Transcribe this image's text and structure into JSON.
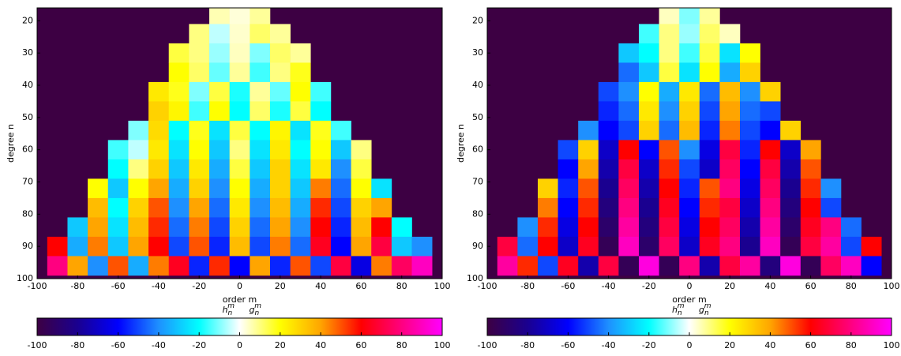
{
  "chart_data": [
    {
      "type": "heatmap",
      "xlabel": "order m",
      "ylabel": "degree n",
      "x": [
        -90,
        -80,
        -70,
        -60,
        -50,
        -40,
        -30,
        -20,
        -10,
        0,
        10,
        20,
        30,
        40,
        50,
        60,
        70,
        80,
        90
      ],
      "y": [
        18,
        24,
        30,
        36,
        42,
        48,
        54,
        60,
        66,
        72,
        78,
        84,
        90,
        96
      ],
      "z": [
        [
          null,
          null,
          null,
          null,
          null,
          null,
          null,
          null,
          6,
          3,
          8,
          null,
          null,
          null,
          null,
          null,
          null,
          null,
          null
        ],
        [
          null,
          null,
          null,
          null,
          null,
          null,
          null,
          10,
          -5,
          4,
          12,
          8,
          null,
          null,
          null,
          null,
          null,
          null,
          null
        ],
        [
          null,
          null,
          null,
          null,
          null,
          null,
          15,
          10,
          -8,
          5,
          -10,
          12,
          8,
          null,
          null,
          null,
          null,
          null,
          null
        ],
        [
          null,
          null,
          null,
          null,
          null,
          null,
          20,
          12,
          -12,
          8,
          -15,
          10,
          18,
          null,
          null,
          null,
          null,
          null,
          null
        ],
        [
          null,
          null,
          null,
          null,
          null,
          25,
          18,
          -10,
          15,
          -18,
          8,
          -12,
          20,
          -15,
          null,
          null,
          null,
          null,
          null
        ],
        [
          null,
          null,
          null,
          null,
          null,
          30,
          22,
          -15,
          20,
          -20,
          12,
          -18,
          15,
          -20,
          null,
          null,
          null,
          null,
          null
        ],
        [
          null,
          null,
          null,
          null,
          -10,
          28,
          -20,
          18,
          -25,
          15,
          -20,
          22,
          -25,
          18,
          -15,
          null,
          null,
          null,
          null
        ],
        [
          null,
          null,
          null,
          -15,
          -5,
          25,
          -25,
          20,
          -30,
          10,
          -25,
          25,
          -20,
          20,
          -30,
          10,
          null,
          null,
          null
        ],
        [
          null,
          null,
          null,
          -20,
          10,
          30,
          -30,
          25,
          -35,
          15,
          -30,
          30,
          -25,
          25,
          -40,
          15,
          null,
          null,
          null
        ],
        [
          null,
          null,
          20,
          -30,
          20,
          40,
          -35,
          30,
          -40,
          20,
          -35,
          30,
          -30,
          45,
          -45,
          20,
          -25,
          null,
          null
        ],
        [
          null,
          null,
          35,
          -20,
          30,
          50,
          -40,
          40,
          -45,
          25,
          -40,
          35,
          -35,
          55,
          -50,
          30,
          40,
          null,
          null
        ],
        [
          null,
          -30,
          40,
          -25,
          35,
          55,
          -45,
          45,
          -50,
          30,
          -45,
          40,
          -40,
          60,
          -55,
          35,
          60,
          -20,
          null
        ],
        [
          60,
          -35,
          45,
          -30,
          40,
          60,
          -50,
          50,
          -55,
          35,
          -50,
          45,
          -45,
          65,
          -60,
          40,
          70,
          -30,
          -40
        ],
        [
          80,
          40,
          -40,
          50,
          -35,
          45,
          65,
          -55,
          55,
          -60,
          40,
          -55,
          50,
          -50,
          70,
          -65,
          45,
          75,
          90
        ]
      ],
      "xlim": [
        -100,
        100
      ],
      "ylim": [
        16,
        100
      ],
      "xticks": [
        -100,
        -80,
        -60,
        -40,
        -20,
        0,
        20,
        40,
        60,
        80,
        100
      ],
      "yticks": [
        20,
        30,
        40,
        50,
        60,
        70,
        80,
        90,
        100
      ],
      "background": "#3d0043",
      "colorscale": [
        [
          -100,
          "#3d0043"
        ],
        [
          -80,
          "#1a0090"
        ],
        [
          -60,
          "#0000ff"
        ],
        [
          -40,
          "#1e90ff"
        ],
        [
          -20,
          "#00ffff"
        ],
        [
          0,
          "#ffffff"
        ],
        [
          20,
          "#ffff00"
        ],
        [
          40,
          "#ffa500"
        ],
        [
          60,
          "#ff0000"
        ],
        [
          80,
          "#ff0080"
        ],
        [
          100,
          "#ff00ff"
        ]
      ],
      "colorbar": {
        "lim": [
          -100,
          100
        ],
        "ticks": [
          -100,
          -80,
          -60,
          -40,
          -20,
          0,
          20,
          40,
          60,
          80,
          100
        ],
        "labels": [
          {
            "base": "h",
            "sub": "n",
            "sup": "m"
          },
          {
            "base": "g",
            "sub": "n",
            "sup": "m"
          }
        ]
      }
    },
    {
      "type": "heatmap",
      "xlabel": "order m",
      "ylabel": "degree n",
      "x": [
        -90,
        -80,
        -70,
        -60,
        -50,
        -40,
        -30,
        -20,
        -10,
        0,
        10,
        20,
        30,
        40,
        50,
        60,
        70,
        80,
        90
      ],
      "y": [
        18,
        24,
        30,
        36,
        42,
        48,
        54,
        60,
        66,
        72,
        78,
        84,
        90,
        96
      ],
      "z": [
        [
          null,
          null,
          null,
          null,
          null,
          null,
          null,
          null,
          5,
          -10,
          8,
          null,
          null,
          null,
          null,
          null,
          null,
          null,
          null
        ],
        [
          null,
          null,
          null,
          null,
          null,
          null,
          null,
          -15,
          10,
          -8,
          12,
          5,
          null,
          null,
          null,
          null,
          null,
          null,
          null
        ],
        [
          null,
          null,
          null,
          null,
          null,
          null,
          -30,
          -20,
          10,
          -15,
          15,
          -25,
          20,
          null,
          null,
          null,
          null,
          null,
          null
        ],
        [
          null,
          null,
          null,
          null,
          null,
          null,
          -45,
          -30,
          15,
          -25,
          20,
          -35,
          30,
          null,
          null,
          null,
          null,
          null,
          null
        ],
        [
          null,
          null,
          null,
          null,
          null,
          -50,
          -40,
          20,
          -35,
          25,
          -45,
          35,
          -40,
          30,
          null,
          null,
          null,
          null,
          null
        ],
        [
          null,
          null,
          null,
          null,
          null,
          -55,
          -45,
          25,
          -40,
          30,
          -50,
          40,
          -45,
          -50,
          null,
          null,
          null,
          null,
          null
        ],
        [
          null,
          null,
          null,
          null,
          -40,
          -60,
          -50,
          30,
          -45,
          35,
          -55,
          45,
          -50,
          -60,
          30,
          null,
          null,
          null,
          null
        ],
        [
          null,
          null,
          null,
          -50,
          30,
          -70,
          60,
          -60,
          50,
          -40,
          -65,
          70,
          -55,
          60,
          -70,
          40,
          null,
          null,
          null
        ],
        [
          null,
          null,
          null,
          -60,
          40,
          -75,
          70,
          -70,
          55,
          -50,
          -70,
          75,
          -60,
          70,
          -75,
          50,
          null,
          null,
          null
        ],
        [
          null,
          null,
          30,
          -55,
          50,
          -80,
          75,
          -75,
          60,
          -55,
          50,
          80,
          -65,
          75,
          -80,
          55,
          -40,
          null,
          null
        ],
        [
          null,
          null,
          45,
          -60,
          55,
          -85,
          80,
          -80,
          65,
          -60,
          55,
          70,
          -70,
          80,
          -85,
          60,
          -50,
          null,
          null
        ],
        [
          null,
          -40,
          55,
          -65,
          60,
          -90,
          85,
          -85,
          70,
          -65,
          60,
          75,
          -75,
          85,
          -90,
          65,
          80,
          -45,
          null
        ],
        [
          70,
          -45,
          60,
          -70,
          65,
          -95,
          90,
          -90,
          75,
          -70,
          65,
          80,
          -80,
          90,
          -95,
          70,
          85,
          -50,
          60
        ],
        [
          85,
          55,
          -50,
          65,
          -75,
          70,
          -95,
          95,
          -95,
          80,
          -75,
          70,
          85,
          -85,
          95,
          -95,
          75,
          90,
          -60
        ]
      ],
      "xlim": [
        -100,
        100
      ],
      "ylim": [
        16,
        100
      ],
      "xticks": [
        -100,
        -80,
        -60,
        -40,
        -20,
        0,
        20,
        40,
        60,
        80,
        100
      ],
      "yticks": [
        20,
        30,
        40,
        50,
        60,
        70,
        80,
        90,
        100
      ],
      "background": "#3d0043",
      "colorscale": [
        [
          -100,
          "#3d0043"
        ],
        [
          -80,
          "#1a0090"
        ],
        [
          -60,
          "#0000ff"
        ],
        [
          -40,
          "#1e90ff"
        ],
        [
          -20,
          "#00ffff"
        ],
        [
          0,
          "#ffffff"
        ],
        [
          20,
          "#ffff00"
        ],
        [
          40,
          "#ffa500"
        ],
        [
          60,
          "#ff0000"
        ],
        [
          80,
          "#ff0080"
        ],
        [
          100,
          "#ff00ff"
        ]
      ],
      "colorbar": {
        "lim": [
          -100,
          100
        ],
        "ticks": [
          -100,
          -80,
          -60,
          -40,
          -20,
          0,
          20,
          40,
          60,
          80,
          100
        ],
        "labels": [
          {
            "base": "h",
            "sub": "n",
            "sup": "m"
          },
          {
            "base": "g",
            "sub": "n",
            "sup": "m"
          }
        ]
      }
    }
  ]
}
